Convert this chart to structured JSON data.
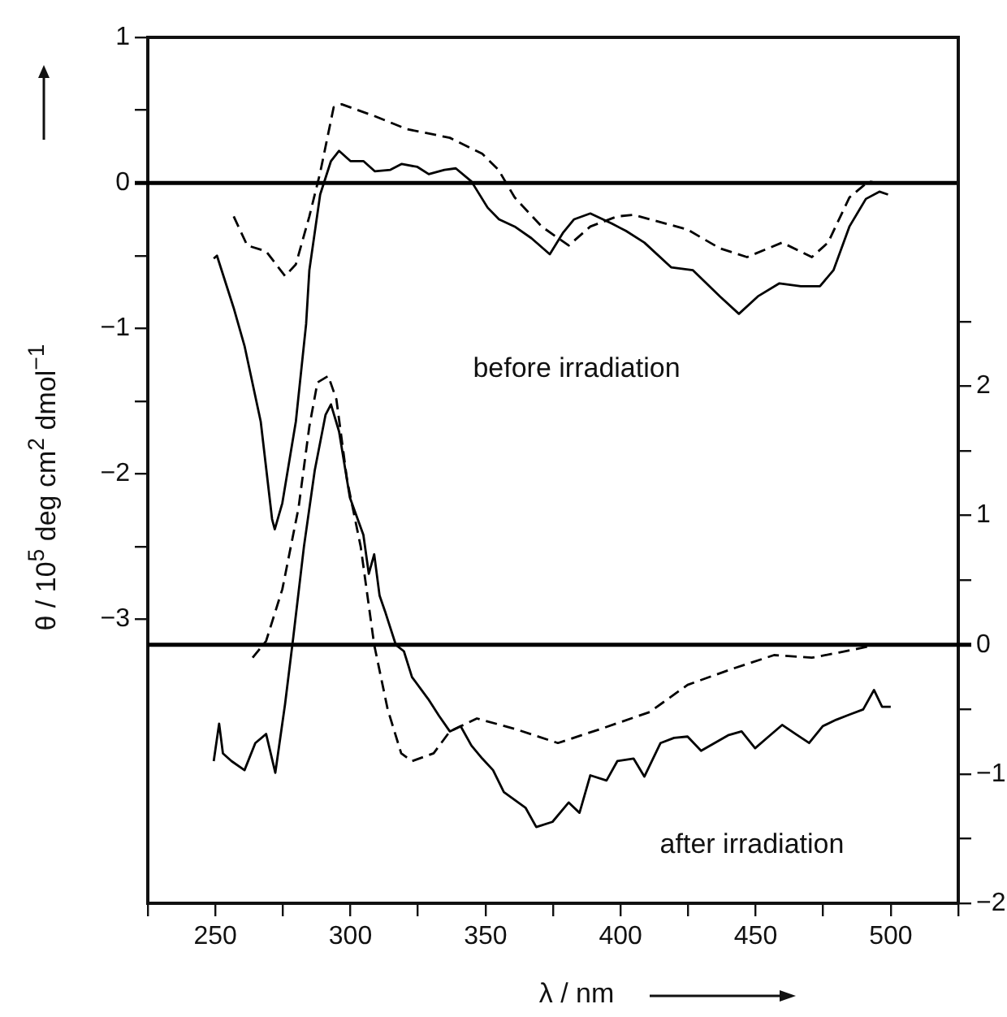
{
  "chart_data": [
    {
      "type": "line",
      "ylabel": "θ / 10$^{5}$ deg cm$^{2}$ dmol$^{−1}$",
      "annotations": [
        "before irradiation"
      ],
      "tick_labels": "y",
      "xlim": [
        225,
        525
      ],
      "ylim": [
        -4.95,
        1
      ],
      "yticks": [
        {
          "value": -3,
          "label": "−3"
        },
        {
          "value": -2.5,
          "label": null
        },
        {
          "value": -2,
          "label": "−2"
        },
        {
          "value": -1.5,
          "label": null
        },
        {
          "value": -1,
          "label": "−1"
        },
        {
          "value": -0.5,
          "label": null
        },
        0,
        {
          "value": 0.5,
          "label": null
        },
        1
      ],
      "ref_lines": [
        {
          "axis": "y",
          "value": 0,
          "color": "#000000"
        }
      ],
      "series": [
        {
          "type": "line",
          "color": "#000000",
          "line_style": "solid",
          "x": [
            249.4,
            250.6,
            256.8,
            260.8,
            266.8,
            271,
            272,
            274.8,
            279.8,
            283.6,
            284.8,
            288.8,
            292.8,
            295.8,
            300,
            304.8,
            309,
            314.8,
            319,
            324.8,
            329,
            334.8,
            339,
            344.8,
            350.8,
            355,
            360.8,
            367,
            373.8,
            378.8,
            382.8,
            388.8,
            396.8,
            402,
            408.8,
            418.7,
            426.8,
            436.8,
            443.8,
            450.8,
            458.8,
            466.7,
            473.8,
            478.8,
            484.7,
            490.8,
            495.8,
            499
          ],
          "values": [
            -0.52,
            -0.5,
            -0.86,
            -1.12,
            -1.64,
            -2.31,
            -2.38,
            -2.2,
            -1.64,
            -0.97,
            -0.6,
            -0.08,
            0.15,
            0.22,
            0.15,
            0.15,
            0.08,
            0.09,
            0.13,
            0.11,
            0.06,
            0.09,
            0.1,
            0.01,
            -0.17,
            -0.25,
            -0.3,
            -0.38,
            -0.49,
            -0.34,
            -0.25,
            -0.21,
            -0.28,
            -0.33,
            -0.41,
            -0.58,
            -0.6,
            -0.78,
            -0.9,
            -0.78,
            -0.69,
            -0.71,
            -0.71,
            -0.6,
            -0.3,
            -0.11,
            -0.06,
            -0.08
          ]
        },
        {
          "type": "line",
          "color": "#000000",
          "line_style": "dashed",
          "x": [
            256.8,
            261.8,
            268.8,
            275.8,
            279.8,
            284.8,
            288.8,
            293.8,
            296.8,
            308.8,
            320.8,
            336.8,
            348.8,
            354.8,
            360.8,
            370.8,
            380.8,
            388.8,
            398.8,
            404.8,
            424.7,
            436.8,
            446.8,
            459.8,
            470.8,
            476.8,
            484.7,
            491.8,
            494.8
          ],
          "values": [
            -0.23,
            -0.43,
            -0.47,
            -0.64,
            -0.56,
            -0.23,
            0.07,
            0.52,
            0.54,
            0.46,
            0.37,
            0.31,
            0.2,
            0.09,
            -0.1,
            -0.3,
            -0.43,
            -0.3,
            -0.23,
            -0.22,
            -0.32,
            -0.45,
            -0.51,
            -0.41,
            -0.51,
            -0.41,
            -0.1,
            0.01,
            0
          ]
        }
      ]
    },
    {
      "type": "line",
      "xlabel": "λ / nm",
      "annotations": [
        "after irradiation"
      ],
      "xlim": [
        225,
        525
      ],
      "xticks": [
        {
          "value": 225,
          "label": null
        },
        250,
        {
          "value": 275,
          "label": null
        },
        300,
        {
          "value": 325,
          "label": null
        },
        350,
        {
          "value": 375,
          "label": null
        },
        400,
        {
          "value": 425,
          "label": null
        },
        450,
        {
          "value": 475,
          "label": null
        },
        500,
        {
          "value": 525,
          "label": null
        }
      ],
      "y2lim": [
        -2,
        4.7
      ],
      "y2ticks": [
        {
          "value": -2,
          "label": "−2"
        },
        {
          "value": -1.5,
          "label": null
        },
        {
          "value": -1,
          "label": "−1"
        },
        {
          "value": -0.5,
          "label": null
        },
        0,
        {
          "value": 0.5,
          "label": null
        },
        1,
        {
          "value": 1.5,
          "label": null
        },
        2,
        {
          "value": 2.5,
          "label": null
        }
      ],
      "ref_lines": [
        {
          "axis": "y2",
          "value": 0,
          "color": "#000000"
        }
      ],
      "series": [
        {
          "type": "line",
          "axis": "y2",
          "color": "#000000",
          "line_style": "solid",
          "x": [
            249.4,
            251.4,
            252.8,
            256,
            260.8,
            264.8,
            268.8,
            272.2,
            275.8,
            278.8,
            282.8,
            286.8,
            290.8,
            292.8,
            295.8,
            299.8,
            304.8,
            306.8,
            308.8,
            310.8,
            312.8,
            316.8,
            319.8,
            322.8,
            328.8,
            332.8,
            336.8,
            340.8,
            344.8,
            348.8,
            352.8,
            356.8,
            364.8,
            368.8,
            374.8,
            380.8,
            384.8,
            388.8,
            394.8,
            398.8,
            404.8,
            408.8,
            414.8,
            419.8,
            424.8,
            429.8,
            434.8,
            439.8,
            444.8,
            449.8,
            454.8,
            459.8,
            464.8,
            469.8,
            474.8,
            479.8,
            484.7,
            489.8,
            493.8,
            496.8,
            500
          ],
          "values": [
            -0.9,
            -0.61,
            -0.84,
            -0.9,
            -0.97,
            -0.76,
            -0.69,
            -0.99,
            -0.46,
            0.05,
            0.76,
            1.35,
            1.78,
            1.86,
            1.65,
            1.14,
            0.85,
            0.55,
            0.7,
            0.38,
            0.26,
            0,
            -0.05,
            -0.25,
            -0.42,
            -0.55,
            -0.67,
            -0.63,
            -0.78,
            -0.88,
            -0.97,
            -1.14,
            -1.26,
            -1.41,
            -1.37,
            -1.22,
            -1.3,
            -1.01,
            -1.05,
            -0.9,
            -0.88,
            -1.02,
            -0.76,
            -0.72,
            -0.71,
            -0.82,
            -0.76,
            -0.7,
            -0.67,
            -0.8,
            -0.71,
            -0.62,
            -0.69,
            -0.76,
            -0.63,
            -0.58,
            -0.54,
            -0.5,
            -0.35,
            -0.48,
            -0.48
          ]
        },
        {
          "type": "line",
          "axis": "y2",
          "color": "#000000",
          "line_style": "dashed",
          "x": [
            263.8,
            268.8,
            274.8,
            280.8,
            284.8,
            287.8,
            291.8,
            294.8,
            298.8,
            303.8,
            308.8,
            313.8,
            318.8,
            322.8,
            330.8,
            336.8,
            346.8,
            360.8,
            376.8,
            392.8,
            410.8,
            424.8,
            440.8,
            456.8,
            470.8,
            480.8,
            494.8
          ],
          "values": [
            -0.1,
            0.03,
            0.43,
            1.06,
            1.69,
            2.03,
            2.08,
            1.9,
            1.27,
            0.76,
            0,
            -0.5,
            -0.84,
            -0.9,
            -0.84,
            -0.67,
            -0.57,
            -0.65,
            -0.76,
            -0.65,
            -0.52,
            -0.31,
            -0.19,
            -0.08,
            -0.1,
            -0.06,
            0
          ]
        }
      ]
    }
  ]
}
